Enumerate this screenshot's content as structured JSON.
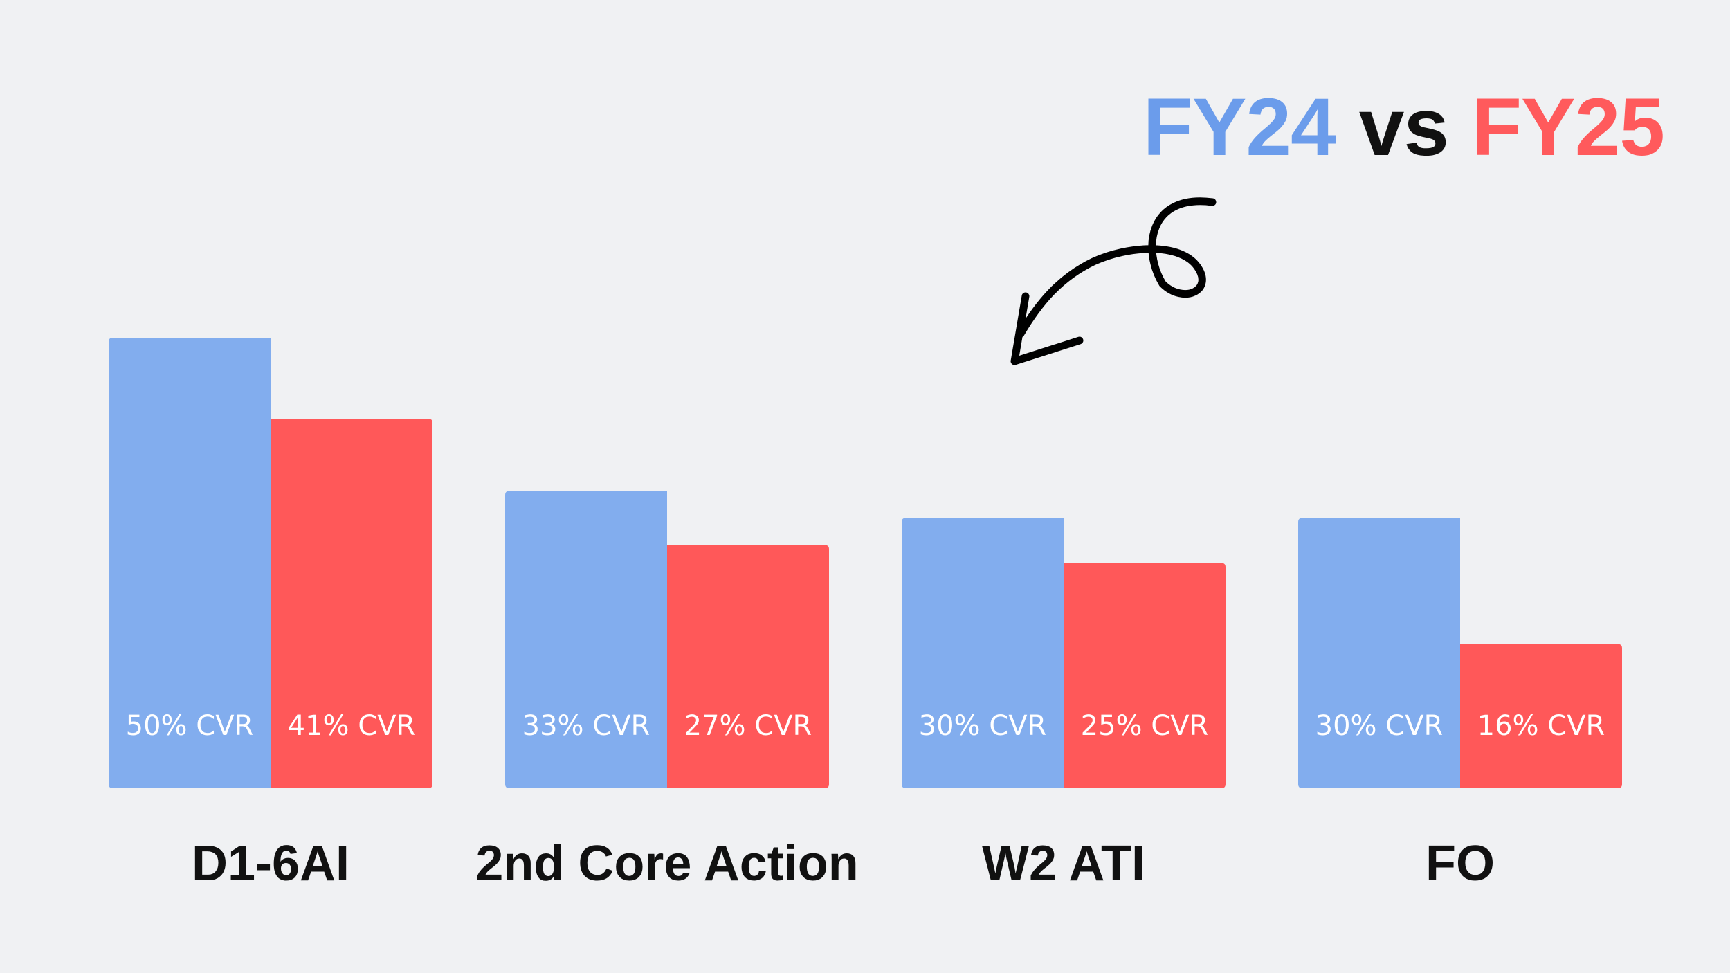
{
  "colors": {
    "background": "#F0F1F3",
    "fy24": "#82ADEE",
    "fy25": "#FF5859",
    "fy24_title": "#6B9CEB",
    "fy25_title": "#FF5A5C",
    "text": "#111111"
  },
  "legend": {
    "series_a": "FY24",
    "separator": "vs",
    "series_b": "FY25"
  },
  "chart_data": {
    "type": "bar",
    "categories": [
      "D1-6AI",
      "2nd Core Action",
      "W2 ATI",
      "FO"
    ],
    "series": [
      {
        "name": "FY24",
        "values": [
          50,
          33,
          30,
          30
        ],
        "labels": [
          "50% CVR",
          "33% CVR",
          "30% CVR",
          "30% CVR"
        ]
      },
      {
        "name": "FY25",
        "values": [
          41,
          27,
          25,
          16
        ],
        "labels": [
          "41% CVR",
          "27% CVR",
          "25% CVR",
          "16% CVR"
        ]
      }
    ],
    "title": "",
    "xlabel": "",
    "ylabel": "",
    "ylim": [
      0,
      50
    ],
    "grid": false,
    "legend_position": "top-right",
    "annotation": "curved-arrow"
  }
}
